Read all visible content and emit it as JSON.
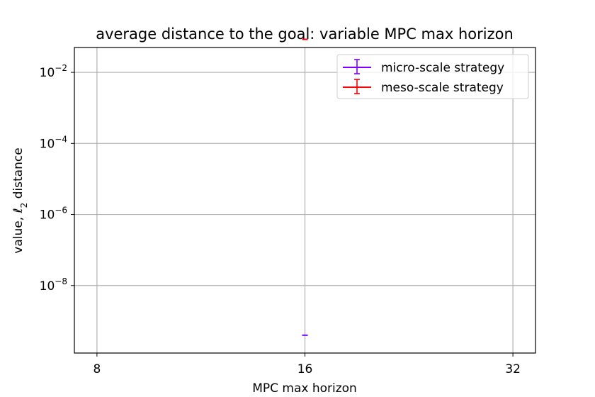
{
  "chart_data": {
    "type": "scatter",
    "title": "average distance to the goal: variable MPC max horizon",
    "xlabel": "MPC max horizon",
    "ylabel_prefix": "value, ",
    "ylabel_symbol": "ℓ",
    "ylabel_sub": "2",
    "ylabel_suffix": " distance",
    "x_scale": "log2",
    "y_scale": "log10",
    "xlim": [
      7.42,
      34.5
    ],
    "ylim_exp": [
      -9.9,
      -1.3
    ],
    "x_ticks": [
      {
        "value": 8,
        "label": "8"
      },
      {
        "value": 16,
        "label": "16"
      },
      {
        "value": 32,
        "label": "32"
      }
    ],
    "y_ticks": [
      {
        "exp": -2,
        "base": "10",
        "sup": "−2"
      },
      {
        "exp": -4,
        "base": "10",
        "sup": "−4"
      },
      {
        "exp": -6,
        "base": "10",
        "sup": "−6"
      },
      {
        "exp": -8,
        "base": "10",
        "sup": "−8"
      }
    ],
    "grid": true,
    "legend_position": "top-right",
    "series": [
      {
        "name": "micro-scale strategy",
        "color": "#7f00ff",
        "points": [
          {
            "x": 16,
            "y": 4e-10
          }
        ]
      },
      {
        "name": "meso-scale strategy",
        "color": "#ff0000",
        "points": [
          {
            "x": 16,
            "y": 0.085
          }
        ]
      }
    ]
  }
}
